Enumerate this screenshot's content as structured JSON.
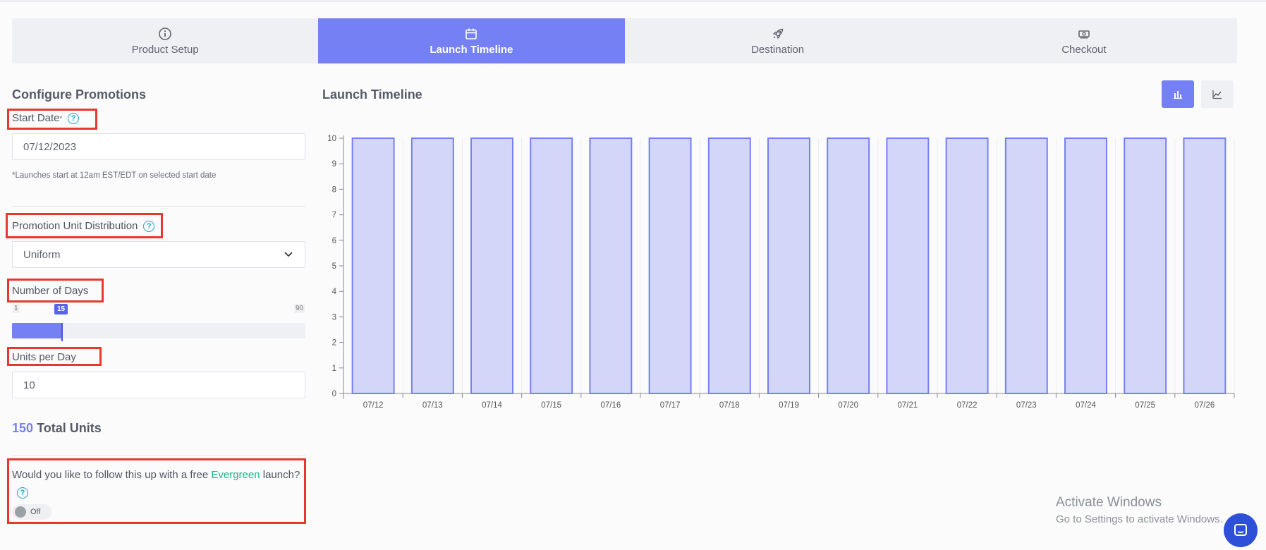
{
  "steps": [
    {
      "label": "Product Setup",
      "icon": "info-icon"
    },
    {
      "label": "Launch Timeline",
      "icon": "calendar-icon"
    },
    {
      "label": "Destination",
      "icon": "rocket-icon"
    },
    {
      "label": "Checkout",
      "icon": "money-icon"
    }
  ],
  "active_step": "Launch Timeline",
  "config": {
    "title": "Configure Promotions",
    "start_date_label": "Start Date",
    "start_date_sup": "*",
    "start_date_value": "07/12/2023",
    "start_note": "*Launches start at 12am EST/EDT on selected start date",
    "distribution_label": "Promotion Unit Distribution",
    "distribution_value": "Uniform",
    "days_label": "Number of Days",
    "days_min": "1",
    "days_max": "90",
    "days_value": "15",
    "units_label": "Units per Day",
    "units_value": "10",
    "total_number": "150",
    "total_label": "Total Units",
    "evergreen_prefix": "Would you like to follow this up with a free ",
    "evergreen_word": "Evergreen",
    "evergreen_suffix": " launch?",
    "toggle_label": "Off"
  },
  "timeline": {
    "title": "Launch Timeline",
    "view_options": [
      "bar-chart-icon",
      "line-chart-icon"
    ],
    "active_view": "bar-chart-icon"
  },
  "chart_data": {
    "type": "bar",
    "categories": [
      "07/12",
      "07/13",
      "07/14",
      "07/15",
      "07/16",
      "07/17",
      "07/18",
      "07/19",
      "07/20",
      "07/21",
      "07/22",
      "07/23",
      "07/24",
      "07/25",
      "07/26"
    ],
    "values": [
      10,
      10,
      10,
      10,
      10,
      10,
      10,
      10,
      10,
      10,
      10,
      10,
      10,
      10,
      10
    ],
    "ylim": [
      0,
      10
    ],
    "yticks": [
      0,
      1,
      2,
      3,
      4,
      5,
      6,
      7,
      8,
      9,
      10
    ],
    "bar_fill": "#d3d6f8",
    "bar_stroke": "#7480f4"
  },
  "colors": {
    "accent": "#7480f4",
    "highlight_box": "#e8382d",
    "evergreen": "#1fb38a",
    "help": "#22a2c9"
  },
  "watermark": {
    "line1": "Activate Windows",
    "line2": "Go to Settings to activate Windows."
  }
}
